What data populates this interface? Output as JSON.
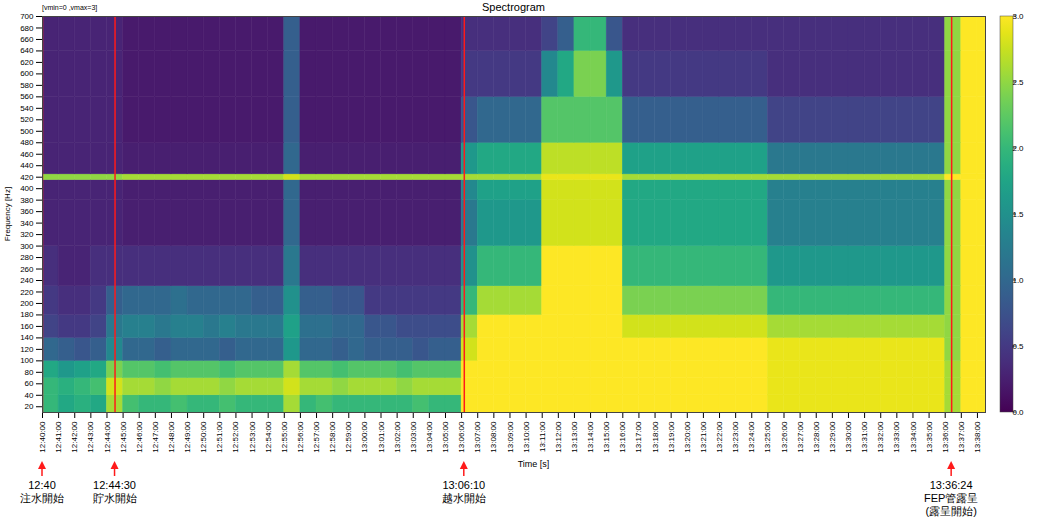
{
  "chart_data": {
    "type": "heatmap",
    "title": "Spectrogram",
    "subtitle": "[vmin=0 ,vmax=3]",
    "x_label": "Time [s]",
    "y_label": "Frequency [Hz]",
    "color": "viridis",
    "xlim": [
      "12:40:00",
      "13:38:30"
    ],
    "xticks": [
      "12:40:00",
      "12:41:00",
      "12:42:00",
      "12:43:00",
      "12:44:00",
      "12:45:00",
      "12:46:00",
      "12:47:00",
      "12:48:00",
      "12:49:00",
      "12:50:00",
      "12:51:00",
      "12:52:00",
      "12:53:00",
      "12:54:00",
      "12:55:00",
      "12:56:00",
      "12:57:00",
      "12:58:00",
      "12:59:00",
      "13:00:00",
      "13:01:00",
      "13:02:00",
      "13:03:00",
      "13:04:00",
      "13:05:00",
      "13:06:00",
      "13:07:00",
      "13:08:00",
      "13:09:00",
      "13:10:00",
      "13:11:00",
      "13:12:00",
      "13:13:00",
      "13:14:00",
      "13:15:00",
      "13:16:00",
      "13:17:00",
      "13:18:00",
      "13:19:00",
      "13:20:00",
      "13:21:00",
      "13:22:00",
      "13:23:00",
      "13:24:00",
      "13:25:00",
      "13:26:00",
      "13:27:00",
      "13:28:00",
      "13:29:00",
      "13:30:00",
      "13:31:00",
      "13:32:00",
      "13:33:00",
      "13:34:00",
      "13:35:00",
      "13:36:00",
      "13:37:00",
      "13:38:00"
    ],
    "ylim": [
      10,
      700
    ],
    "yticks": [
      20,
      40,
      60,
      80,
      100,
      120,
      140,
      160,
      180,
      200,
      220,
      240,
      260,
      280,
      300,
      320,
      340,
      360,
      380,
      400,
      420,
      440,
      460,
      480,
      500,
      520,
      540,
      560,
      580,
      600,
      620,
      640,
      660,
      680,
      700
    ],
    "x_edges": [
      "12:40:00",
      "12:41:00",
      "12:42:00",
      "12:43:00",
      "12:44:00",
      "12:45:00",
      "12:46:00",
      "12:47:00",
      "12:48:00",
      "12:49:00",
      "12:50:00",
      "12:51:00",
      "12:52:00",
      "12:53:00",
      "12:54:00",
      "12:55:00",
      "12:56:00",
      "12:57:00",
      "12:58:00",
      "12:59:00",
      "13:00:00",
      "13:01:00",
      "13:02:00",
      "13:03:00",
      "13:04:00",
      "13:05:00",
      "13:06:00",
      "13:07:00",
      "13:08:00",
      "13:09:00",
      "13:10:00",
      "13:11:00",
      "13:12:00",
      "13:13:00",
      "13:14:00",
      "13:15:00",
      "13:16:00",
      "13:17:00",
      "13:18:00",
      "13:19:00",
      "13:20:00",
      "13:21:00",
      "13:22:00",
      "13:23:00",
      "13:24:00",
      "13:25:00",
      "13:26:00",
      "13:27:00",
      "13:28:00",
      "13:29:00",
      "13:30:00",
      "13:31:00",
      "13:32:00",
      "13:33:00",
      "13:34:00",
      "13:35:00",
      "13:36:00",
      "13:37:00",
      "13:38:00",
      "13:38:30"
    ],
    "y_edges": [
      10,
      40,
      70,
      100,
      140,
      180,
      230,
      300,
      380,
      415,
      425,
      480,
      560,
      640,
      700
    ],
    "values": [
      [
        2.0,
        1.8,
        1.9,
        1.8,
        2.6,
        2.1,
        2.0,
        2.0,
        2.1,
        2.0,
        2.0,
        2.1,
        2.0,
        2.0,
        2.0,
        2.6,
        2.0,
        2.1,
        2.0,
        2.0,
        2.0,
        2.0,
        2.0,
        2.1,
        2.0,
        2.0,
        3.0,
        3.0,
        3.0,
        3.0,
        3.0,
        3.0,
        3.0,
        3.0,
        3.0,
        3.0,
        3.0,
        3.0,
        3.0,
        3.0,
        3.0,
        3.0,
        3.0,
        3.0,
        3.0,
        2.9,
        2.9,
        2.9,
        2.9,
        2.9,
        2.9,
        2.9,
        2.9,
        2.9,
        2.9,
        2.9,
        2.6,
        3.0,
        3.0
      ],
      [
        2.0,
        1.9,
        2.0,
        2.1,
        2.8,
        2.6,
        2.6,
        2.5,
        2.6,
        2.6,
        2.6,
        2.5,
        2.6,
        2.6,
        2.6,
        2.8,
        2.6,
        2.6,
        2.5,
        2.6,
        2.6,
        2.6,
        2.5,
        2.6,
        2.6,
        2.6,
        3.0,
        3.0,
        3.0,
        3.0,
        3.0,
        3.0,
        3.0,
        3.0,
        3.0,
        3.0,
        3.0,
        3.0,
        3.0,
        3.0,
        3.0,
        3.0,
        3.0,
        3.0,
        3.0,
        2.9,
        2.9,
        2.9,
        2.9,
        2.9,
        2.9,
        2.9,
        2.9,
        2.9,
        2.9,
        2.9,
        2.6,
        3.0,
        3.0
      ],
      [
        1.8,
        1.6,
        1.7,
        1.8,
        2.4,
        2.2,
        2.2,
        2.1,
        2.2,
        2.2,
        2.2,
        2.1,
        2.2,
        2.2,
        2.2,
        2.6,
        2.2,
        2.2,
        2.1,
        2.2,
        2.2,
        2.2,
        2.1,
        2.2,
        2.2,
        2.2,
        3.0,
        3.0,
        3.0,
        3.0,
        3.0,
        3.0,
        3.0,
        3.0,
        3.0,
        3.0,
        3.0,
        3.0,
        3.0,
        3.0,
        3.0,
        3.0,
        3.0,
        3.0,
        3.0,
        2.9,
        2.9,
        2.9,
        2.9,
        2.9,
        2.9,
        2.9,
        2.9,
        2.9,
        2.9,
        2.9,
        2.6,
        3.0,
        3.0
      ],
      [
        1.0,
        0.9,
        0.8,
        0.9,
        1.4,
        1.0,
        1.0,
        0.9,
        1.0,
        1.0,
        1.0,
        0.9,
        1.0,
        1.0,
        1.0,
        1.6,
        1.0,
        1.0,
        0.9,
        1.0,
        0.9,
        0.9,
        0.9,
        0.8,
        0.9,
        0.9,
        2.8,
        3.0,
        3.0,
        3.0,
        3.0,
        3.0,
        3.0,
        3.0,
        3.0,
        3.0,
        3.0,
        3.0,
        3.0,
        3.0,
        3.0,
        3.0,
        3.0,
        3.0,
        3.0,
        2.9,
        2.9,
        2.9,
        2.9,
        2.9,
        2.9,
        2.9,
        2.9,
        2.9,
        2.9,
        2.9,
        2.5,
        3.0,
        3.0
      ],
      [
        0.6,
        0.5,
        0.5,
        0.6,
        1.2,
        1.3,
        1.3,
        1.2,
        1.3,
        1.3,
        1.2,
        1.3,
        1.2,
        1.2,
        1.2,
        1.7,
        1.1,
        1.1,
        1.0,
        1.0,
        0.8,
        0.8,
        0.7,
        0.7,
        0.7,
        0.7,
        2.6,
        3.0,
        3.0,
        3.0,
        3.0,
        3.0,
        3.0,
        3.0,
        3.0,
        3.0,
        2.8,
        2.8,
        2.8,
        2.8,
        2.8,
        2.8,
        2.8,
        2.8,
        2.8,
        2.6,
        2.6,
        2.6,
        2.6,
        2.6,
        2.6,
        2.6,
        2.6,
        2.6,
        2.6,
        2.6,
        2.5,
        3.0,
        3.0
      ],
      [
        0.5,
        0.4,
        0.4,
        0.5,
        0.9,
        1.0,
        1.0,
        1.0,
        1.1,
        1.0,
        1.0,
        1.0,
        1.0,
        0.9,
        0.9,
        1.5,
        0.9,
        0.9,
        0.8,
        0.8,
        0.5,
        0.5,
        0.5,
        0.5,
        0.5,
        0.5,
        2.0,
        2.6,
        2.6,
        2.6,
        2.6,
        3.0,
        3.0,
        3.0,
        3.0,
        3.0,
        2.4,
        2.4,
        2.4,
        2.4,
        2.4,
        2.4,
        2.4,
        2.4,
        2.4,
        2.0,
        2.0,
        2.0,
        2.0,
        2.0,
        2.0,
        2.0,
        2.0,
        2.0,
        2.0,
        2.0,
        2.5,
        3.0,
        3.0
      ],
      [
        0.4,
        0.3,
        0.3,
        0.4,
        0.4,
        0.4,
        0.4,
        0.4,
        0.4,
        0.4,
        0.4,
        0.4,
        0.4,
        0.4,
        0.4,
        1.2,
        0.4,
        0.4,
        0.4,
        0.4,
        0.4,
        0.4,
        0.4,
        0.4,
        0.4,
        0.4,
        1.5,
        2.0,
        2.0,
        2.0,
        2.0,
        3.0,
        3.0,
        3.0,
        3.0,
        3.0,
        2.0,
        2.0,
        2.0,
        2.0,
        2.0,
        2.0,
        2.0,
        2.0,
        2.0,
        1.6,
        1.6,
        1.6,
        1.6,
        1.6,
        1.6,
        1.6,
        1.6,
        1.6,
        1.6,
        1.6,
        2.5,
        3.0,
        3.0
      ],
      [
        0.3,
        0.3,
        0.3,
        0.3,
        0.3,
        0.25,
        0.25,
        0.25,
        0.25,
        0.25,
        0.25,
        0.25,
        0.25,
        0.25,
        0.25,
        1.0,
        0.25,
        0.25,
        0.25,
        0.25,
        0.25,
        0.25,
        0.25,
        0.25,
        0.25,
        0.25,
        1.2,
        1.6,
        1.6,
        1.6,
        1.6,
        2.8,
        2.8,
        2.8,
        2.8,
        2.8,
        1.8,
        1.8,
        1.8,
        1.8,
        1.8,
        1.8,
        1.8,
        1.8,
        1.8,
        1.3,
        1.3,
        1.3,
        1.3,
        1.3,
        1.3,
        1.3,
        1.3,
        1.3,
        1.3,
        1.3,
        2.5,
        3.0,
        3.0
      ],
      [
        0.3,
        0.3,
        0.3,
        0.3,
        0.3,
        0.25,
        0.25,
        0.25,
        0.25,
        0.25,
        0.25,
        0.25,
        0.25,
        0.25,
        0.25,
        1.0,
        0.25,
        0.25,
        0.25,
        0.25,
        0.25,
        0.25,
        0.25,
        0.25,
        0.25,
        0.25,
        1.4,
        1.7,
        1.7,
        1.7,
        1.7,
        2.8,
        2.8,
        2.8,
        2.8,
        2.8,
        1.8,
        1.8,
        1.8,
        1.8,
        1.8,
        1.8,
        1.8,
        1.8,
        1.8,
        1.3,
        1.3,
        1.3,
        1.3,
        1.3,
        1.3,
        1.3,
        1.3,
        1.3,
        1.3,
        1.3,
        2.5,
        3.0,
        3.0
      ],
      [
        2.5,
        2.5,
        2.5,
        2.5,
        2.5,
        2.6,
        2.6,
        2.6,
        2.6,
        2.6,
        2.6,
        2.6,
        2.6,
        2.6,
        2.6,
        2.8,
        2.6,
        2.6,
        2.6,
        2.6,
        2.6,
        2.6,
        2.6,
        2.6,
        2.6,
        2.6,
        2.6,
        2.6,
        2.6,
        2.6,
        2.6,
        2.9,
        2.9,
        2.9,
        2.9,
        2.9,
        2.6,
        2.6,
        2.6,
        2.6,
        2.6,
        2.6,
        2.6,
        2.6,
        2.6,
        2.6,
        2.6,
        2.6,
        2.6,
        2.6,
        2.6,
        2.6,
        2.6,
        2.6,
        2.6,
        2.6,
        3.0,
        3.0,
        3.0
      ],
      [
        0.3,
        0.3,
        0.3,
        0.3,
        0.3,
        0.25,
        0.25,
        0.25,
        0.25,
        0.25,
        0.25,
        0.25,
        0.25,
        0.25,
        0.25,
        1.0,
        0.25,
        0.25,
        0.25,
        0.25,
        0.25,
        0.25,
        0.25,
        0.25,
        0.25,
        0.25,
        1.6,
        1.8,
        1.8,
        1.8,
        1.8,
        2.7,
        2.7,
        2.7,
        2.7,
        2.7,
        1.7,
        1.7,
        1.7,
        1.7,
        1.7,
        1.7,
        1.7,
        1.7,
        1.7,
        1.2,
        1.2,
        1.2,
        1.2,
        1.2,
        1.2,
        1.2,
        1.2,
        1.2,
        1.2,
        1.2,
        2.5,
        3.0,
        3.0
      ],
      [
        0.3,
        0.3,
        0.3,
        0.3,
        0.3,
        0.2,
        0.2,
        0.2,
        0.2,
        0.2,
        0.2,
        0.2,
        0.2,
        0.2,
        0.2,
        0.9,
        0.2,
        0.2,
        0.2,
        0.2,
        0.2,
        0.2,
        0.2,
        0.2,
        0.2,
        0.2,
        0.8,
        1.0,
        1.0,
        1.0,
        1.0,
        2.2,
        2.2,
        2.2,
        2.2,
        2.2,
        0.9,
        0.9,
        0.9,
        0.9,
        0.9,
        0.9,
        0.9,
        0.9,
        0.9,
        0.6,
        0.6,
        0.6,
        0.6,
        0.6,
        0.6,
        0.6,
        0.6,
        0.6,
        0.6,
        0.6,
        2.5,
        3.0,
        3.0
      ],
      [
        0.3,
        0.3,
        0.3,
        0.3,
        0.3,
        0.2,
        0.2,
        0.2,
        0.2,
        0.2,
        0.2,
        0.2,
        0.2,
        0.2,
        0.2,
        0.9,
        0.2,
        0.2,
        0.2,
        0.2,
        0.2,
        0.2,
        0.2,
        0.2,
        0.2,
        0.2,
        0.5,
        0.5,
        0.5,
        0.5,
        0.5,
        1.4,
        1.8,
        2.4,
        2.4,
        1.6,
        0.5,
        0.5,
        0.5,
        0.5,
        0.5,
        0.5,
        0.5,
        0.5,
        0.5,
        0.4,
        0.4,
        0.4,
        0.4,
        0.4,
        0.4,
        0.4,
        0.4,
        0.4,
        0.4,
        0.4,
        2.5,
        3.0,
        3.0
      ],
      [
        0.3,
        0.3,
        0.3,
        0.3,
        0.3,
        0.2,
        0.2,
        0.2,
        0.2,
        0.2,
        0.2,
        0.2,
        0.2,
        0.2,
        0.2,
        0.9,
        0.2,
        0.2,
        0.2,
        0.2,
        0.2,
        0.2,
        0.2,
        0.2,
        0.2,
        0.2,
        0.4,
        0.4,
        0.4,
        0.4,
        0.4,
        0.6,
        0.9,
        2.0,
        2.0,
        0.8,
        0.4,
        0.4,
        0.4,
        0.4,
        0.4,
        0.4,
        0.4,
        0.4,
        0.4,
        0.4,
        0.4,
        0.4,
        0.4,
        0.4,
        0.4,
        0.4,
        0.4,
        0.4,
        0.4,
        0.4,
        2.5,
        3.0,
        3.0
      ]
    ],
    "colorbar_lim": [
      0,
      3
    ],
    "colorbar_ticks": [
      {
        "value": 0,
        "label": "0.0"
      },
      {
        "value": 0.5,
        "label": "0.5"
      },
      {
        "value": 1,
        "label": "1.0"
      },
      {
        "value": 1.5,
        "label": "1.5"
      },
      {
        "value": 2,
        "label": "2.0"
      },
      {
        "value": 2.5,
        "label": "2.5"
      },
      {
        "value": 3,
        "label": "3.0"
      }
    ],
    "annotations": [
      {
        "time": "12:40:00",
        "text": [
          "12:40",
          "注水開始"
        ]
      },
      {
        "time": "12:44:30",
        "text": [
          "12:44:30",
          "貯水開始"
        ]
      },
      {
        "time": "13:06:10",
        "text": [
          "13:06:10",
          "越水開始"
        ]
      },
      {
        "time": "13:36:24",
        "text": [
          "13:36:24",
          "FEP管露呈",
          "(露呈開始)"
        ]
      }
    ]
  }
}
